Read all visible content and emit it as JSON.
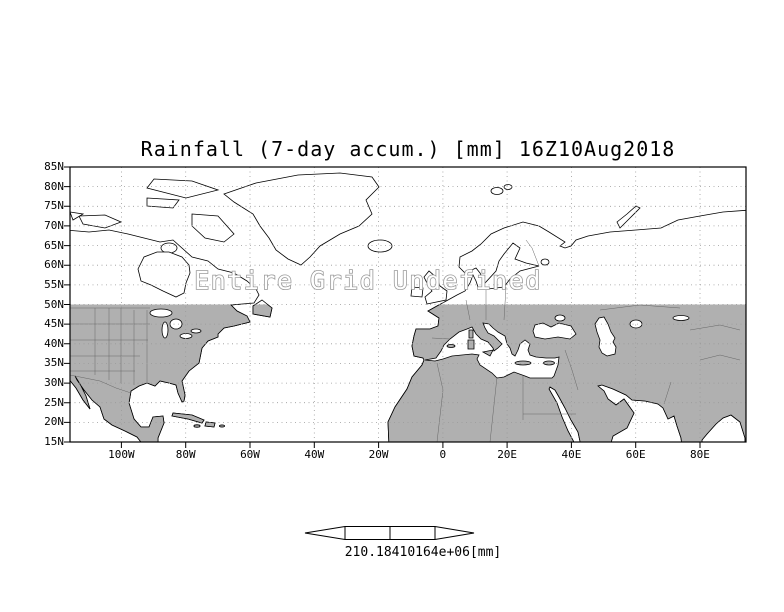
{
  "title": "Rainfall (7-day accum.) [mm] 16Z10Aug2018",
  "overlay_message": "Entire Grid Undefined",
  "axes": {
    "lat_ticks": [
      "85N",
      "80N",
      "75N",
      "70N",
      "65N",
      "60N",
      "55N",
      "50N",
      "45N",
      "40N",
      "35N",
      "30N",
      "25N",
      "20N",
      "15N"
    ],
    "lon_ticks": [
      "100W",
      "80W",
      "60W",
      "40W",
      "20W",
      "0",
      "20E",
      "40E",
      "60E",
      "80E"
    ]
  },
  "colorbar": {
    "label": "210.18410164e+06[mm]"
  },
  "colors": {
    "background": "#ffffff",
    "land_shaded": "#b0b0b0",
    "coastline": "#000000",
    "grid_dots": "#999999",
    "overlay_text_fill": "#ffffff",
    "overlay_text_stroke": "#999999"
  },
  "chart_data": {
    "type": "heatmap",
    "title": "Rainfall (7-day accum.) [mm] 16Z10Aug2018",
    "variable": "Rainfall (7-day accumulation)",
    "units": "mm",
    "valid_time": "16Z10Aug2018",
    "status": "Entire Grid Undefined",
    "values": null,
    "x": {
      "label": "longitude",
      "tick_labels": [
        "100W",
        "80W",
        "60W",
        "40W",
        "20W",
        "0",
        "20E",
        "40E",
        "60E",
        "80E"
      ]
    },
    "y": {
      "label": "latitude",
      "tick_labels": [
        "85N",
        "80N",
        "75N",
        "70N",
        "65N",
        "60N",
        "55N",
        "50N",
        "45N",
        "40N",
        "35N",
        "30N",
        "25N",
        "20N",
        "15N"
      ],
      "range": [
        "15N",
        "85N"
      ]
    },
    "grid": true,
    "legend_position": "bottom colorbar",
    "colorbar_label": "210.18410164e+06[mm]",
    "basemap": "world coastlines; land south of ~50N shaded gray, grid undefined (no rainfall data plotted)"
  }
}
